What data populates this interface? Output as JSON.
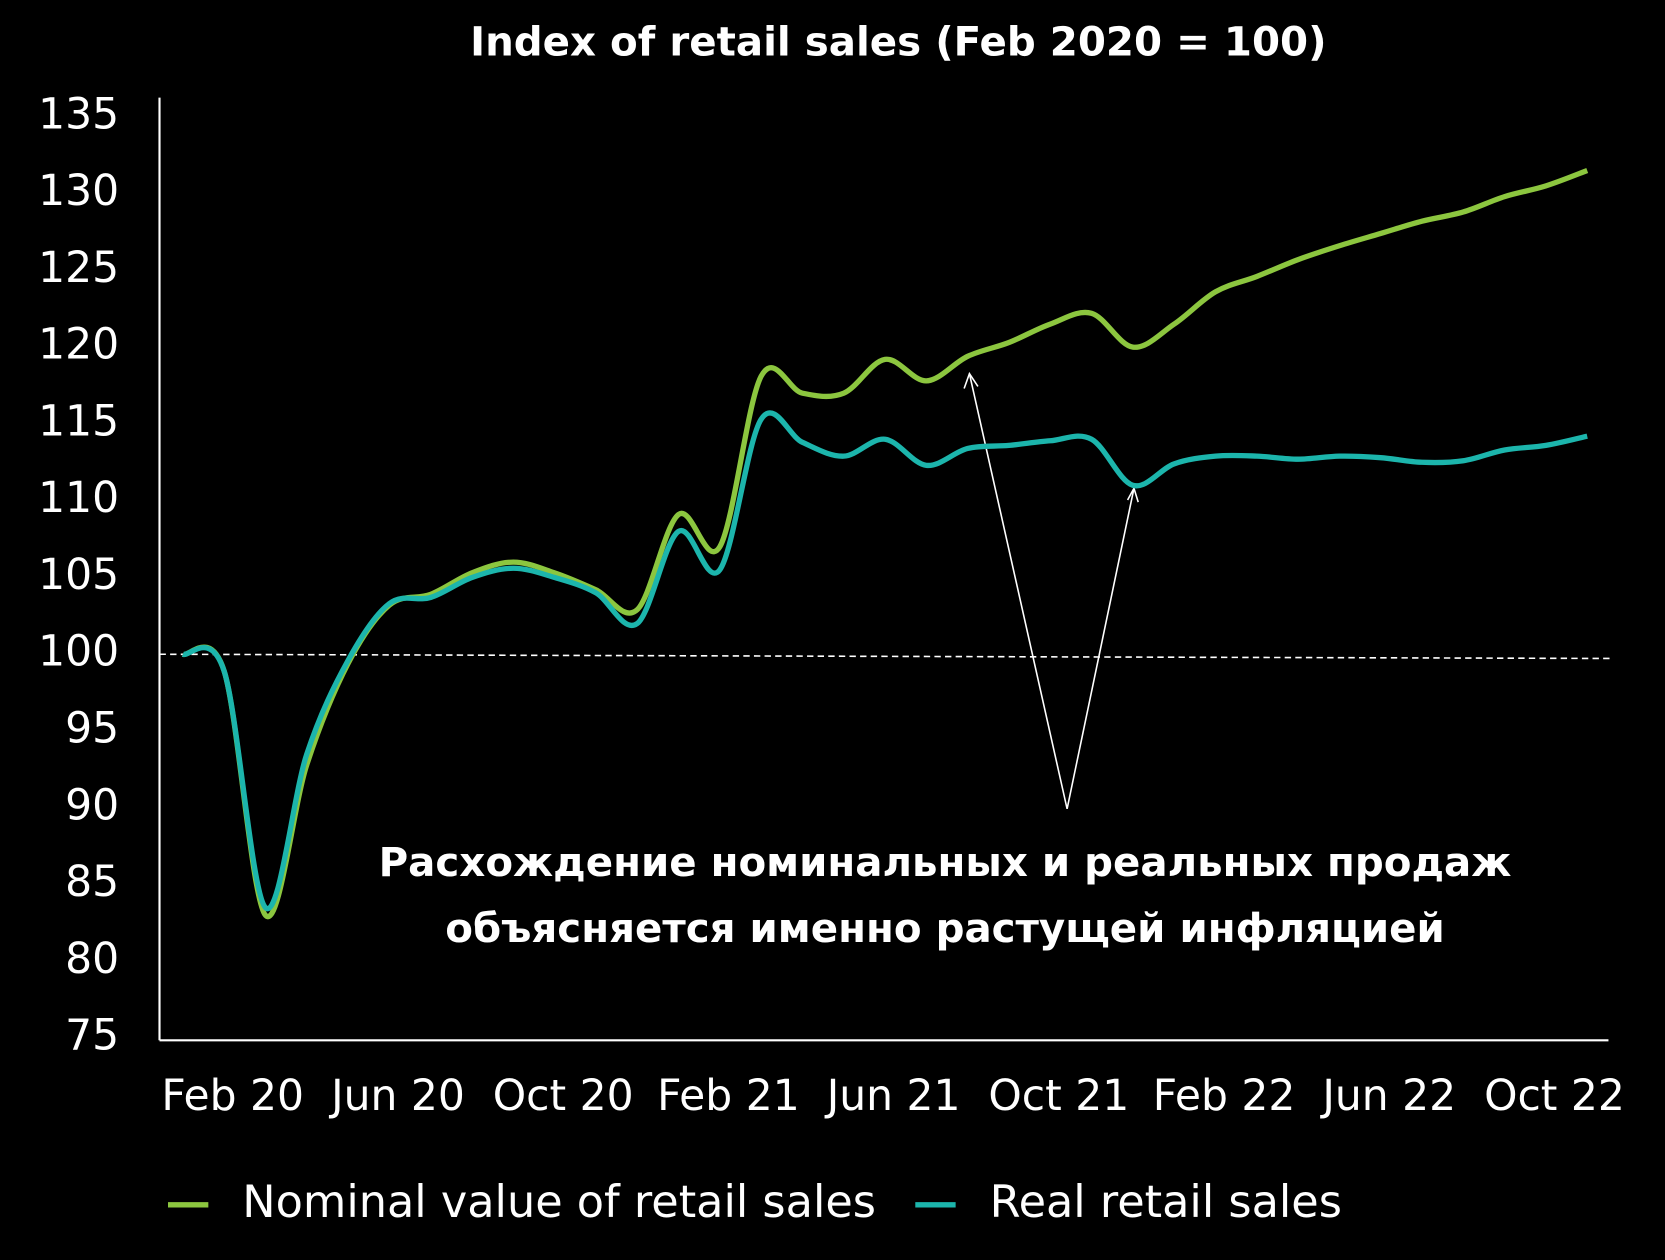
{
  "chart_data": {
    "type": "line",
    "title": "Index of retail sales (Feb 2020 = 100)",
    "annotation": "Расхождение номинальных и реальных продаж объясняется именно растущей инфляцией",
    "categories": [
      "Feb 20",
      null,
      null,
      null,
      "Jun 20",
      null,
      null,
      null,
      "Oct 20",
      null,
      null,
      null,
      "Feb 21",
      null,
      null,
      null,
      "Jun 21",
      null,
      null,
      null,
      "Oct 21",
      null,
      null,
      null,
      "Feb 22",
      null,
      null,
      null,
      "Jun 22",
      null,
      null,
      null,
      "Oct 22",
      null,
      null
    ],
    "series": [
      {
        "name": "Nominal value of retail sales",
        "color": "#8cc63f",
        "values": [
          100,
          98.9,
          83,
          92.8,
          99.4,
          103.2,
          103.9,
          105.3,
          106.0,
          105.3,
          104.2,
          102.9,
          109.1,
          107.0,
          118.1,
          117.0,
          117.0,
          119.2,
          117.8,
          119.4,
          120.3,
          121.5,
          122.2,
          120.0,
          121.5,
          123.6,
          124.6,
          125.7,
          126.6,
          127.4,
          128.2,
          128.8,
          129.8,
          130.5,
          131.5
        ]
      },
      {
        "name": "Real retail sales",
        "color": "#1cb5ac",
        "values": [
          100,
          98.9,
          83.5,
          93.5,
          99.6,
          103.3,
          103.7,
          105.0,
          105.6,
          105.0,
          104.0,
          102.0,
          108.0,
          105.5,
          115.3,
          113.8,
          112.9,
          114.0,
          112.3,
          113.4,
          113.6,
          113.9,
          114.0,
          111.0,
          112.4,
          112.9,
          112.9,
          112.7,
          112.9,
          112.8,
          112.5,
          112.6,
          113.3,
          113.6,
          114.2
        ]
      }
    ],
    "baseline": 100,
    "ylim": [
      75,
      135
    ],
    "yticks": [
      75,
      80,
      85,
      90,
      95,
      100,
      105,
      110,
      115,
      120,
      125,
      130,
      135
    ]
  }
}
